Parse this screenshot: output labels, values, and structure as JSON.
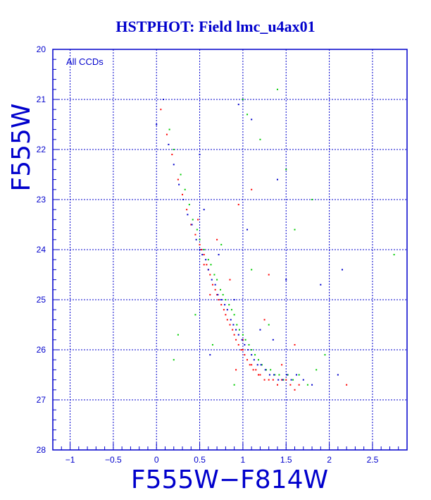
{
  "chart_data": {
    "type": "scatter",
    "title": "HSTPHOT: Field lmc_u4ax01",
    "xlabel": "F555W−F814W",
    "ylabel": "F555W",
    "annotation": "All CCDs",
    "xlim": [
      -1.2,
      2.9
    ],
    "ylim": [
      28,
      20
    ],
    "y_inverted": true,
    "grid": true,
    "xticks": [
      -1,
      -0.5,
      0,
      0.5,
      1,
      1.5,
      2,
      2.5
    ],
    "xtick_labels": [
      "−1",
      "−0.5",
      "0",
      "0.5",
      "1",
      "1.5",
      "2",
      "2.5"
    ],
    "yticks": [
      20,
      21,
      22,
      23,
      24,
      25,
      26,
      27,
      28
    ],
    "ytick_labels": [
      "20",
      "21",
      "22",
      "23",
      "24",
      "25",
      "26",
      "27",
      "28"
    ],
    "colors": {
      "axis": "#0000cc",
      "grid": "#0000cc",
      "title": "#0000cc"
    },
    "series": [
      {
        "color": "#ff0000",
        "x": [
          0.05,
          0.12,
          0.18,
          0.25,
          0.3,
          0.35,
          0.4,
          0.45,
          0.5,
          0.52,
          0.55,
          0.58,
          0.6,
          0.62,
          0.65,
          0.68,
          0.7,
          0.72,
          0.75,
          0.78,
          0.8,
          0.82,
          0.85,
          0.88,
          0.9,
          0.92,
          0.95,
          0.98,
          1.0,
          1.02,
          1.05,
          1.08,
          1.1,
          1.12,
          1.15,
          1.18,
          1.2,
          1.25,
          1.3,
          1.35,
          1.4,
          1.45,
          1.5,
          1.55,
          1.6,
          1.65,
          0.7,
          0.85,
          1.0,
          1.25,
          0.55,
          0.95,
          1.3,
          1.6,
          2.2,
          1.45,
          1.1,
          0.48,
          0.62,
          0.92
        ],
        "y": [
          21.2,
          21.7,
          22.1,
          22.6,
          22.9,
          23.2,
          23.5,
          23.7,
          23.9,
          24.0,
          24.1,
          24.3,
          24.4,
          24.5,
          24.7,
          24.8,
          24.9,
          25.0,
          25.1,
          25.2,
          25.3,
          25.4,
          25.5,
          25.6,
          25.7,
          25.8,
          25.9,
          26.0,
          26.0,
          26.1,
          26.2,
          26.3,
          26.3,
          26.4,
          26.4,
          26.5,
          26.5,
          26.6,
          26.6,
          26.6,
          26.7,
          26.6,
          26.6,
          26.7,
          26.8,
          26.7,
          23.8,
          24.6,
          25.8,
          25.4,
          24.3,
          23.1,
          24.5,
          25.9,
          26.7,
          26.3,
          22.8,
          23.4,
          24.9,
          26.4
        ]
      },
      {
        "color": "#00cc00",
        "x": [
          0.15,
          0.2,
          0.28,
          0.33,
          0.38,
          0.42,
          0.47,
          0.5,
          0.55,
          0.6,
          0.63,
          0.67,
          0.7,
          0.74,
          0.77,
          0.8,
          0.84,
          0.87,
          0.9,
          0.93,
          0.96,
          1.0,
          1.03,
          1.07,
          1.1,
          1.14,
          1.18,
          1.22,
          1.27,
          1.32,
          1.37,
          1.42,
          1.47,
          1.52,
          1.58,
          1.65,
          1.75,
          1.85,
          2.75,
          0.25,
          0.2,
          1.95,
          1.0,
          1.05,
          1.2,
          1.4,
          0.75,
          1.6,
          0.45,
          1.1,
          1.3,
          0.9,
          0.65,
          1.5,
          1.8
        ],
        "y": [
          21.6,
          22.0,
          22.5,
          22.8,
          23.1,
          23.4,
          23.6,
          23.8,
          24.0,
          24.2,
          24.3,
          24.5,
          24.6,
          24.8,
          24.9,
          25.0,
          25.1,
          25.2,
          25.3,
          25.5,
          25.6,
          25.7,
          25.8,
          25.9,
          26.0,
          26.1,
          26.2,
          26.3,
          26.4,
          26.4,
          26.5,
          26.5,
          26.6,
          26.5,
          26.6,
          26.5,
          26.7,
          26.4,
          24.1,
          25.7,
          26.2,
          26.1,
          21.0,
          21.3,
          21.8,
          20.8,
          23.9,
          23.6,
          25.3,
          24.4,
          25.5,
          26.7,
          25.9,
          22.4,
          23.0
        ]
      },
      {
        "color": "#0000cc",
        "x": [
          0.0,
          0.08,
          0.14,
          0.2,
          0.26,
          0.31,
          0.36,
          0.41,
          0.46,
          0.5,
          0.53,
          0.57,
          0.6,
          0.64,
          0.68,
          0.71,
          0.75,
          0.79,
          0.82,
          0.86,
          0.89,
          0.92,
          0.95,
          0.99,
          1.02,
          1.06,
          1.1,
          1.13,
          1.17,
          1.21,
          1.26,
          1.31,
          1.36,
          1.41,
          1.46,
          1.51,
          1.56,
          1.62,
          1.7,
          1.8,
          2.1,
          2.15,
          0.95,
          1.1,
          0.5,
          0.55,
          1.5,
          1.2,
          0.9,
          0.72,
          1.35,
          0.62,
          1.05,
          1.4,
          1.9
        ],
        "y": [
          21.5,
          21.0,
          21.9,
          22.3,
          22.7,
          23.0,
          23.3,
          23.5,
          23.8,
          24.0,
          24.1,
          24.2,
          24.4,
          24.6,
          24.7,
          24.9,
          25.0,
          25.1,
          25.2,
          25.4,
          25.5,
          25.6,
          25.7,
          25.8,
          25.9,
          26.0,
          26.1,
          26.2,
          26.3,
          26.3,
          26.4,
          26.5,
          26.5,
          26.6,
          26.6,
          26.5,
          26.6,
          26.5,
          26.6,
          26.7,
          26.5,
          24.4,
          21.1,
          21.4,
          22.1,
          23.2,
          24.6,
          25.6,
          25.0,
          24.1,
          25.8,
          26.1,
          23.6,
          22.6,
          24.7
        ]
      }
    ]
  }
}
